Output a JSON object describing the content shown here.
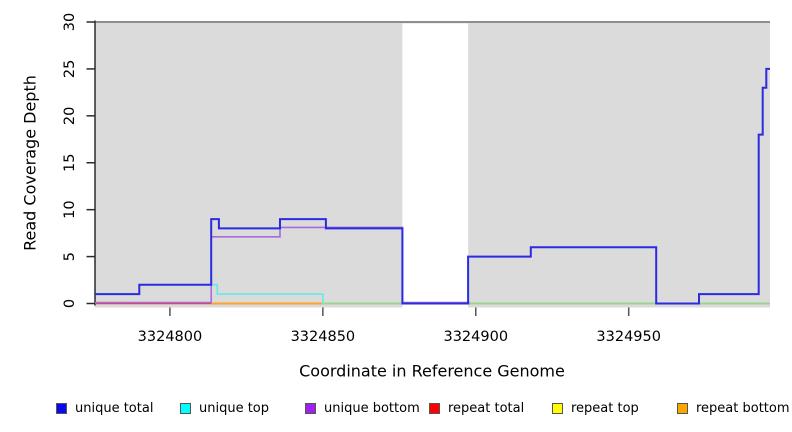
{
  "chart_data": {
    "type": "line",
    "subtype": "step-coverage",
    "title": "",
    "xlabel": "Coordinate in Reference Genome",
    "ylabel": "Read Coverage Depth",
    "xlim": [
      3324775.5,
      3324996.2
    ],
    "ylim": [
      0,
      30
    ],
    "x_ticks": [
      3324800,
      3324850,
      3324900,
      3324950
    ],
    "x_tick_labels": [
      "3324800",
      "3324850",
      "3324900",
      "3324950"
    ],
    "y_ticks": [
      0,
      5,
      10,
      15,
      20,
      25,
      30
    ],
    "y_tick_labels": [
      "0",
      "5",
      "10",
      "15",
      "20",
      "25",
      "30"
    ],
    "grid": false,
    "plot_bg_color": "#DBDBDB",
    "plot_border_top_color": "#8E8E8E",
    "gap_region": {
      "x_start": 3324876,
      "x_end": 3324897.5,
      "color": "#FFFFFF"
    },
    "baseline_overlay": {
      "x_start": 3324850,
      "x_end": 3324996.2,
      "value": 0,
      "color": "#8FD98F"
    },
    "series": [
      {
        "name": "repeat total",
        "color": "#E04040",
        "width": 1.6,
        "steps": [
          [
            3324775.5,
            0
          ]
        ],
        "end": 3324996.2
      },
      {
        "name": "repeat top",
        "color": "#FFFF00",
        "width": 1.6,
        "steps": [
          [
            3324850,
            0
          ]
        ],
        "end": 3324996.2
      },
      {
        "name": "repeat bottom",
        "color": "#FFA51E",
        "width": 1.8,
        "steps": [
          [
            3324813.5,
            0
          ]
        ],
        "end": 3324850
      },
      {
        "name": "unique top",
        "color": "#66EAE8",
        "width": 1.6,
        "steps": [
          [
            3324813.5,
            2
          ],
          [
            3324815.5,
            1
          ],
          [
            3324850,
            0
          ]
        ],
        "end": 3324850.4
      },
      {
        "name": "unique bottom",
        "color": "#A66BDC",
        "width": 1.6,
        "dy": -1,
        "steps": [
          [
            3324775.5,
            0
          ],
          [
            3324813.5,
            7
          ],
          [
            3324836,
            8
          ],
          [
            3324876,
            0
          ]
        ],
        "end": 3324898
      },
      {
        "name": "unique total",
        "color": "#2B2BE0",
        "width": 2,
        "steps": [
          [
            3324775.5,
            1
          ],
          [
            3324790,
            2
          ],
          [
            3324813.5,
            9
          ],
          [
            3324816,
            8
          ],
          [
            3324836,
            9
          ],
          [
            3324851,
            8
          ],
          [
            3324876,
            0
          ],
          [
            3324897.5,
            5
          ],
          [
            3324918,
            6
          ],
          [
            3324959,
            0
          ],
          [
            3324973,
            1
          ],
          [
            3324992.5,
            18
          ],
          [
            3324993.8,
            23
          ],
          [
            3324995,
            25
          ]
        ],
        "end": 3324996.2
      }
    ],
    "legend": [
      {
        "label": "unique total",
        "color": "#0A0AF0"
      },
      {
        "label": "unique top",
        "color": "#00FFFF"
      },
      {
        "label": "unique bottom",
        "color": "#A020F0"
      },
      {
        "label": "repeat total",
        "color": "#FF0000"
      },
      {
        "label": "repeat top",
        "color": "#FFFF00"
      },
      {
        "label": "repeat bottom",
        "color": "#FFA500"
      }
    ],
    "legend_position": "bottom"
  }
}
